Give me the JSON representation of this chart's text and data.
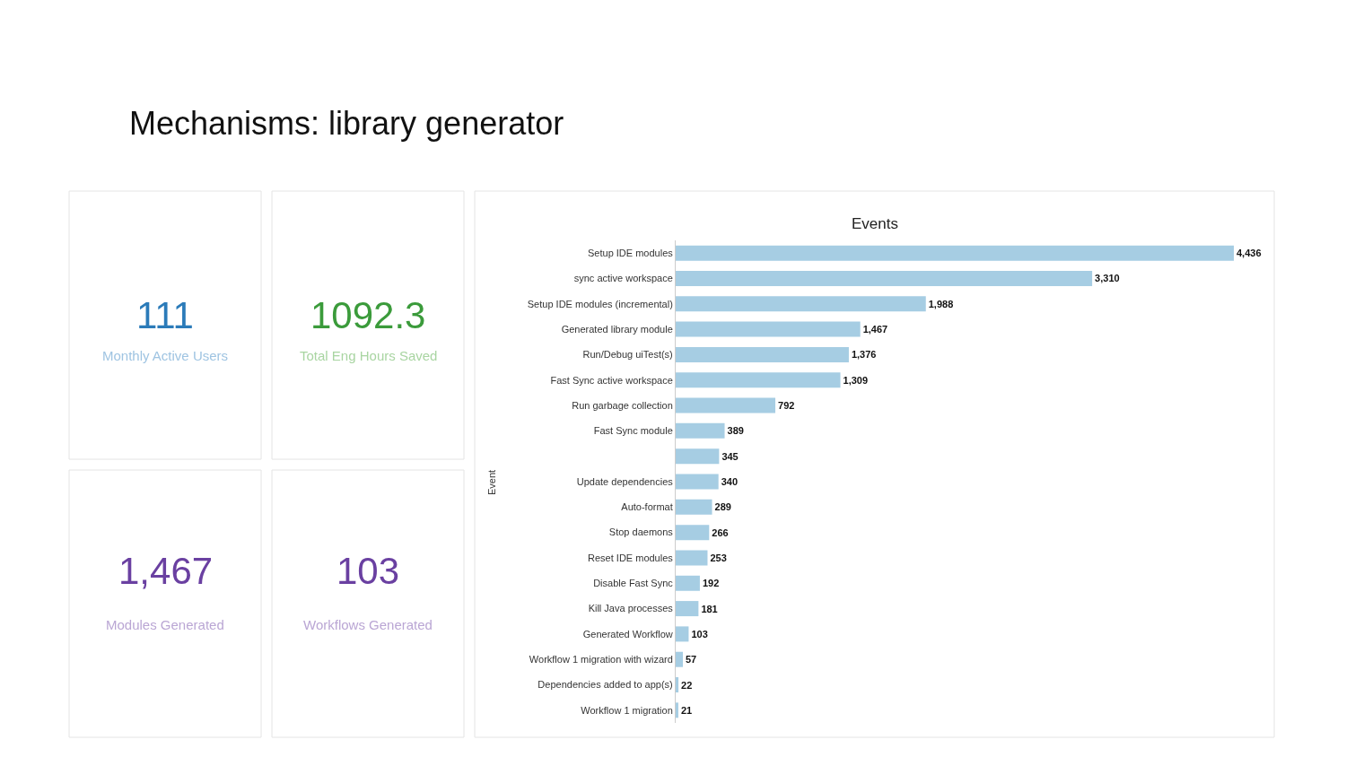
{
  "chart_data": [
    {
      "type": "other",
      "title": "Mechanisms: library generator"
    },
    {
      "type": "other",
      "title": "111",
      "subtitle": "Monthly Active Users",
      "colors": [
        "#2b7bb9",
        "#9fc4e2"
      ]
    },
    {
      "type": "other",
      "title": "1092.3",
      "subtitle": "Total Eng Hours Saved",
      "colors": [
        "#3b9b3b",
        "#a9d5a2"
      ]
    },
    {
      "type": "bar",
      "title": "Events",
      "ylabel": "Event",
      "orientation": "horizontal",
      "tick_labels": "y",
      "color": "#a6cde3",
      "categories": [
        "Setup IDE modules",
        "sync active workspace",
        "Setup IDE modules (incremental)",
        "Generated library module",
        "Run/Debug uiTest(s)",
        "Fast Sync active workspace",
        "Run garbage collection",
        "Fast Sync module",
        null,
        "Update dependencies",
        "Auto-format",
        "Stop daemons",
        "Reset IDE modules",
        "Disable Fast Sync",
        "Kill Java processes",
        "Generated Workflow",
        "Workflow 1 migration with wizard",
        "Dependencies added to app(s)",
        "Workflow 1 migration"
      ],
      "values": [
        4436,
        3310,
        1988,
        1467,
        1376,
        1309,
        792,
        389,
        345,
        340,
        289,
        266,
        253,
        192,
        181,
        103,
        57,
        22,
        21
      ],
      "value_labels": [
        "4,436",
        "3,310",
        "1,988",
        "1,467",
        "1,376",
        "1,309",
        "792",
        "389",
        "345",
        "340",
        "289",
        "266",
        "253",
        "192",
        "181",
        "103",
        "57",
        "22",
        "21"
      ]
    },
    {
      "type": "other",
      "title": "1,467",
      "subtitle": "Modules Generated",
      "colors": [
        "#6a40a1",
        "#baa6d4"
      ]
    },
    {
      "type": "other",
      "title": "103",
      "subtitle": "Workflows Generated",
      "colors": [
        "#6a40a1",
        "#baa6d4"
      ]
    }
  ]
}
